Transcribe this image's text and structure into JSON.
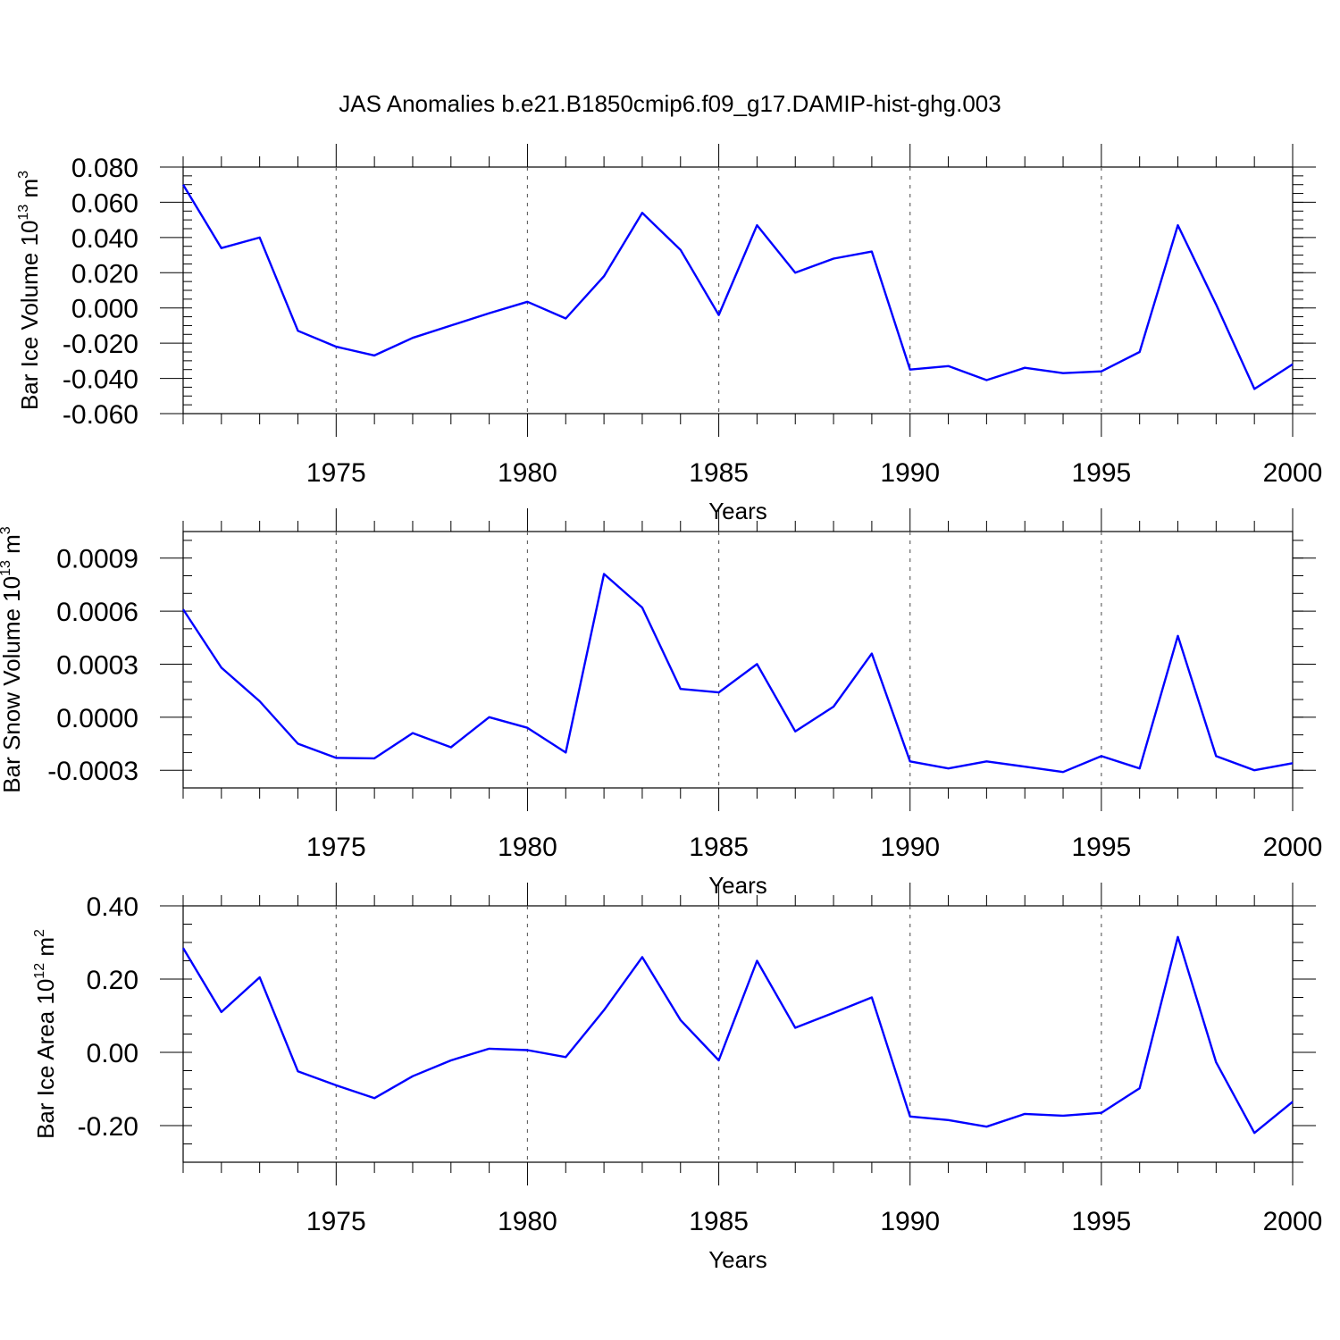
{
  "title": "JAS Anomalies b.e21.B1850cmip6.f09_g17.DAMIP-hist-ghg.003",
  "colors": {
    "line": "#0000ff",
    "axis": "#000000",
    "grid": "#666666"
  },
  "chart_data": [
    {
      "type": "line",
      "series_name": "Bar Ice Volume",
      "ylabel_main": "Bar Ice Volume 10",
      "ylabel_exp": "13",
      "ylabel_unit": "m",
      "ylabel_unit_exp": "3",
      "xlabel": "Years",
      "xlim": [
        1971,
        2000
      ],
      "ylim": [
        -0.06,
        0.08
      ],
      "xticks": [
        1975,
        1980,
        1985,
        1990,
        1995,
        2000
      ],
      "xtick_labels": [
        "1975",
        "1980",
        "1985",
        "1990",
        "1995",
        "2000"
      ],
      "yticks": [
        0.08,
        0.06,
        0.04,
        0.02,
        0.0,
        -0.02,
        -0.04,
        -0.06
      ],
      "ytick_labels": [
        "0.080",
        "0.060",
        "0.040",
        "0.020",
        "0.000",
        "-0.020",
        "-0.040",
        "-0.060"
      ],
      "yminor_step": 0.005,
      "grid_x": [
        1975,
        1980,
        1985,
        1990,
        1995
      ],
      "x": [
        1971,
        1972,
        1973,
        1974,
        1975,
        1976,
        1977,
        1978,
        1979,
        1980,
        1981,
        1982,
        1983,
        1984,
        1985,
        1986,
        1987,
        1988,
        1989,
        1990,
        1991,
        1992,
        1993,
        1994,
        1995,
        1996,
        1997,
        1998,
        1999,
        2000
      ],
      "values": [
        0.07,
        0.034,
        0.04,
        -0.013,
        -0.022,
        -0.027,
        -0.017,
        -0.01,
        -0.003,
        0.0035,
        -0.006,
        0.018,
        0.054,
        0.033,
        -0.004,
        0.047,
        0.02,
        0.028,
        0.032,
        -0.035,
        -0.033,
        -0.041,
        -0.034,
        -0.037,
        -0.036,
        -0.025,
        0.047,
        0.002,
        -0.046,
        -0.032
      ]
    },
    {
      "type": "line",
      "series_name": "Bar Snow Volume",
      "ylabel_main": "Bar Snow Volume 10",
      "ylabel_exp": "13",
      "ylabel_unit": "m",
      "ylabel_unit_exp": "3",
      "xlabel": "Years",
      "xlim": [
        1971,
        2000
      ],
      "ylim": [
        -0.0004,
        0.00105
      ],
      "xticks": [
        1975,
        1980,
        1985,
        1990,
        1995,
        2000
      ],
      "xtick_labels": [
        "1975",
        "1980",
        "1985",
        "1990",
        "1995",
        "2000"
      ],
      "yticks": [
        0.0009,
        0.0006,
        0.0003,
        0.0,
        -0.0003
      ],
      "ytick_labels": [
        "0.0009",
        "0.0006",
        "0.0003",
        "0.0000",
        "-0.0003"
      ],
      "yminor_step": 0.0001,
      "grid_x": [
        1975,
        1980,
        1985,
        1990,
        1995
      ],
      "x": [
        1971,
        1972,
        1973,
        1974,
        1975,
        1976,
        1977,
        1978,
        1979,
        1980,
        1981,
        1982,
        1983,
        1984,
        1985,
        1986,
        1987,
        1988,
        1989,
        1990,
        1991,
        1992,
        1993,
        1994,
        1995,
        1996,
        1997,
        1998,
        1999,
        2000
      ],
      "values": [
        0.00061,
        0.00028,
        9e-05,
        -0.00015,
        -0.00023,
        -0.000233,
        -9e-05,
        -0.00017,
        0.0,
        -6e-05,
        -0.0002,
        0.00081,
        0.00062,
        0.00016,
        0.00014,
        0.0003,
        -8e-05,
        6e-05,
        0.00036,
        -0.00025,
        -0.00029,
        -0.00025,
        -0.00028,
        -0.00031,
        -0.00022,
        -0.00029,
        0.00046,
        -0.00022,
        -0.0003,
        -0.00026
      ]
    },
    {
      "type": "line",
      "series_name": "Bar Ice Area",
      "ylabel_main": "Bar Ice Area 10",
      "ylabel_exp": "12",
      "ylabel_unit": "m",
      "ylabel_unit_exp": "2",
      "xlabel": "Years",
      "xlim": [
        1971,
        2000
      ],
      "ylim": [
        -0.3,
        0.4
      ],
      "xticks": [
        1975,
        1980,
        1985,
        1990,
        1995,
        2000
      ],
      "xtick_labels": [
        "1975",
        "1980",
        "1985",
        "1990",
        "1995",
        "2000"
      ],
      "yticks": [
        0.4,
        0.2,
        0.0,
        -0.2
      ],
      "ytick_labels": [
        "0.40",
        "0.20",
        "0.00",
        "-0.20"
      ],
      "yminor_step": 0.05,
      "grid_x": [
        1975,
        1980,
        1985,
        1990,
        1995
      ],
      "x": [
        1971,
        1972,
        1973,
        1974,
        1975,
        1976,
        1977,
        1978,
        1979,
        1980,
        1981,
        1982,
        1983,
        1984,
        1985,
        1986,
        1987,
        1988,
        1989,
        1990,
        1991,
        1992,
        1993,
        1994,
        1995,
        1996,
        1997,
        1998,
        1999,
        2000
      ],
      "values": [
        0.285,
        0.11,
        0.205,
        -0.052,
        -0.09,
        -0.125,
        -0.065,
        -0.022,
        0.01,
        0.006,
        -0.013,
        0.115,
        0.26,
        0.088,
        -0.022,
        0.25,
        0.067,
        0.108,
        0.15,
        -0.175,
        -0.185,
        -0.203,
        -0.168,
        -0.173,
        -0.165,
        -0.098,
        0.315,
        -0.027,
        -0.22,
        -0.135
      ]
    }
  ]
}
